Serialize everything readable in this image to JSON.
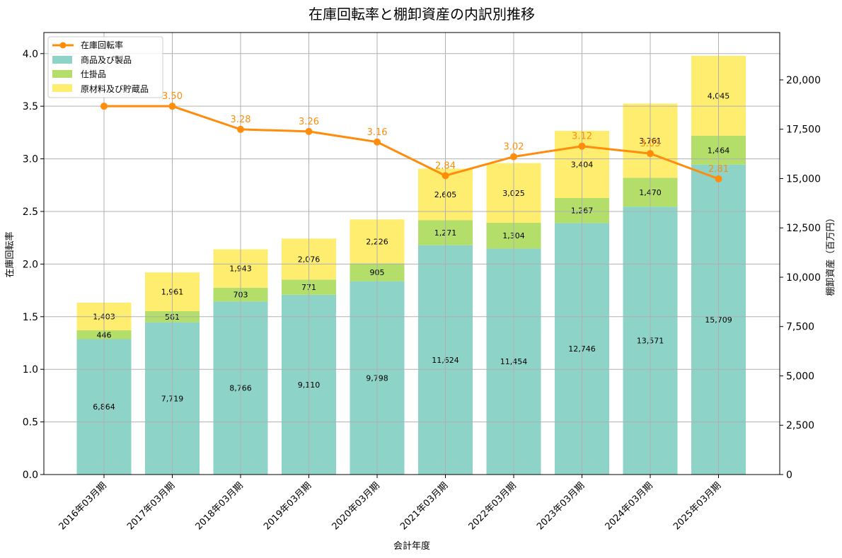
{
  "chart_data": {
    "type": "bar",
    "title": "在庫回転率と棚卸資産の内訳別推移",
    "xlabel": "会計年度",
    "ylabel_left": "在庫回転率",
    "ylabel_right": "棚卸資産（百万円）",
    "categories": [
      "2016年03月期",
      "2017年03月期",
      "2018年03月期",
      "2019年03月期",
      "2020年03月期",
      "2021年03月期",
      "2022年03月期",
      "2023年03月期",
      "2024年03月期",
      "2025年03月期"
    ],
    "series": [
      {
        "name": "商品及び製品",
        "values": [
          6864,
          7719,
          8766,
          9110,
          9798,
          11624,
          11454,
          12746,
          13571,
          15709
        ],
        "value_labels": [
          "6,864",
          "7,719",
          "8,766",
          "9,110",
          "9,798",
          "11,624",
          "11,454",
          "12,746",
          "13,571",
          "15,709"
        ]
      },
      {
        "name": "仕掛品",
        "values": [
          446,
          561,
          703,
          771,
          905,
          1271,
          1304,
          1267,
          1470,
          1464
        ],
        "value_labels": [
          "446",
          "561",
          "703",
          "771",
          "905",
          "1,271",
          "1,304",
          "1,267",
          "1,470",
          "1,464"
        ]
      },
      {
        "name": "原材料及び貯蔵品",
        "values": [
          1403,
          1961,
          1943,
          2076,
          2226,
          2605,
          3025,
          3404,
          3761,
          4045
        ],
        "value_labels": [
          "1,403",
          "1,961",
          "1,943",
          "2,076",
          "2,226",
          "2,605",
          "3,025",
          "3,404",
          "3,761",
          "4,045"
        ]
      }
    ],
    "line_series": {
      "name": "在庫回転率",
      "values": [
        3.5,
        3.5,
        3.28,
        3.26,
        3.16,
        2.84,
        3.02,
        3.12,
        3.05,
        2.81
      ],
      "value_labels": [
        "",
        "3.50",
        "3.28",
        "3.26",
        "3.16",
        "2.84",
        "3.02",
        "3.12",
        "3.05",
        "2.81"
      ]
    },
    "ylim_left": [
      0,
      4.2
    ],
    "ylim_right": [
      0,
      22400
    ],
    "yticks_left": [
      "0.0",
      "0.5",
      "1.0",
      "1.5",
      "2.0",
      "2.5",
      "3.0",
      "3.5",
      "4.0"
    ],
    "yticks_right": [
      "0",
      "2,500",
      "5,000",
      "7,500",
      "10,000",
      "12,500",
      "15,000",
      "17,500",
      "20,000"
    ],
    "grid": true,
    "legend_position": "top-left",
    "colors": {
      "product": "#8dd3c7",
      "wip": "#b3de69",
      "material": "#ffed6f",
      "line": "#ff8c0a",
      "grid": "#b0b0b0"
    }
  }
}
